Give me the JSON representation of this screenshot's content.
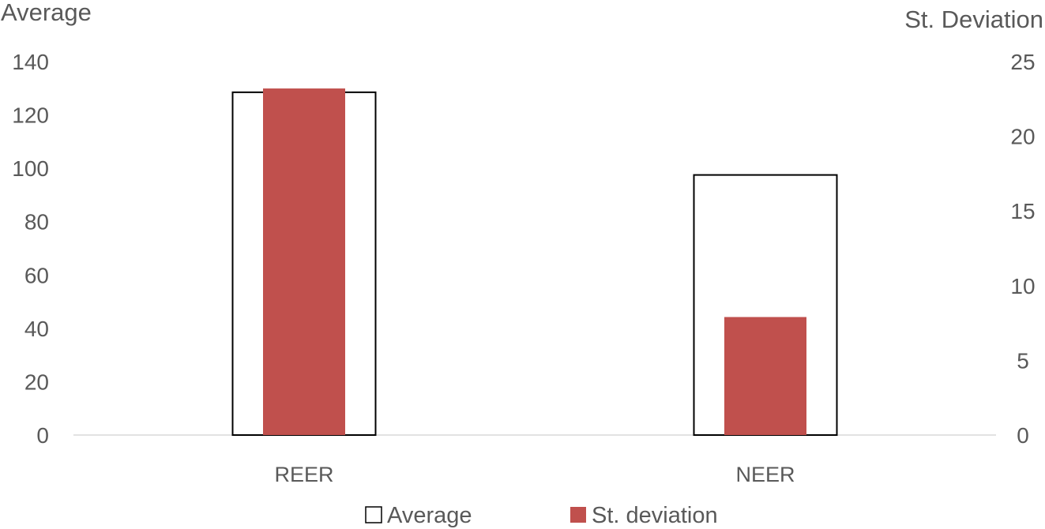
{
  "chart_data": {
    "type": "bar",
    "categories": [
      "REER",
      "NEER"
    ],
    "series": [
      {
        "name": "Average",
        "axis": "left",
        "values": [
          128.5,
          97.5
        ],
        "fill": "#ffffff",
        "stroke": "#000000"
      },
      {
        "name": "St. deviation",
        "axis": "right",
        "values": [
          23.2,
          7.9
        ],
        "fill": "#c0504d",
        "stroke": "none"
      }
    ],
    "left_axis": {
      "title": "Average",
      "range": [
        0,
        140
      ],
      "ticks": [
        "0",
        "20",
        "40",
        "60",
        "80",
        "100",
        "120",
        "140"
      ]
    },
    "right_axis": {
      "title": "St. Deviation",
      "range": [
        0,
        25
      ],
      "ticks": [
        "0",
        "5",
        "10",
        "15",
        "20",
        "25"
      ]
    },
    "grid": false,
    "legend": {
      "position": "bottom",
      "items": [
        "Average",
        "St. deviation"
      ]
    }
  }
}
